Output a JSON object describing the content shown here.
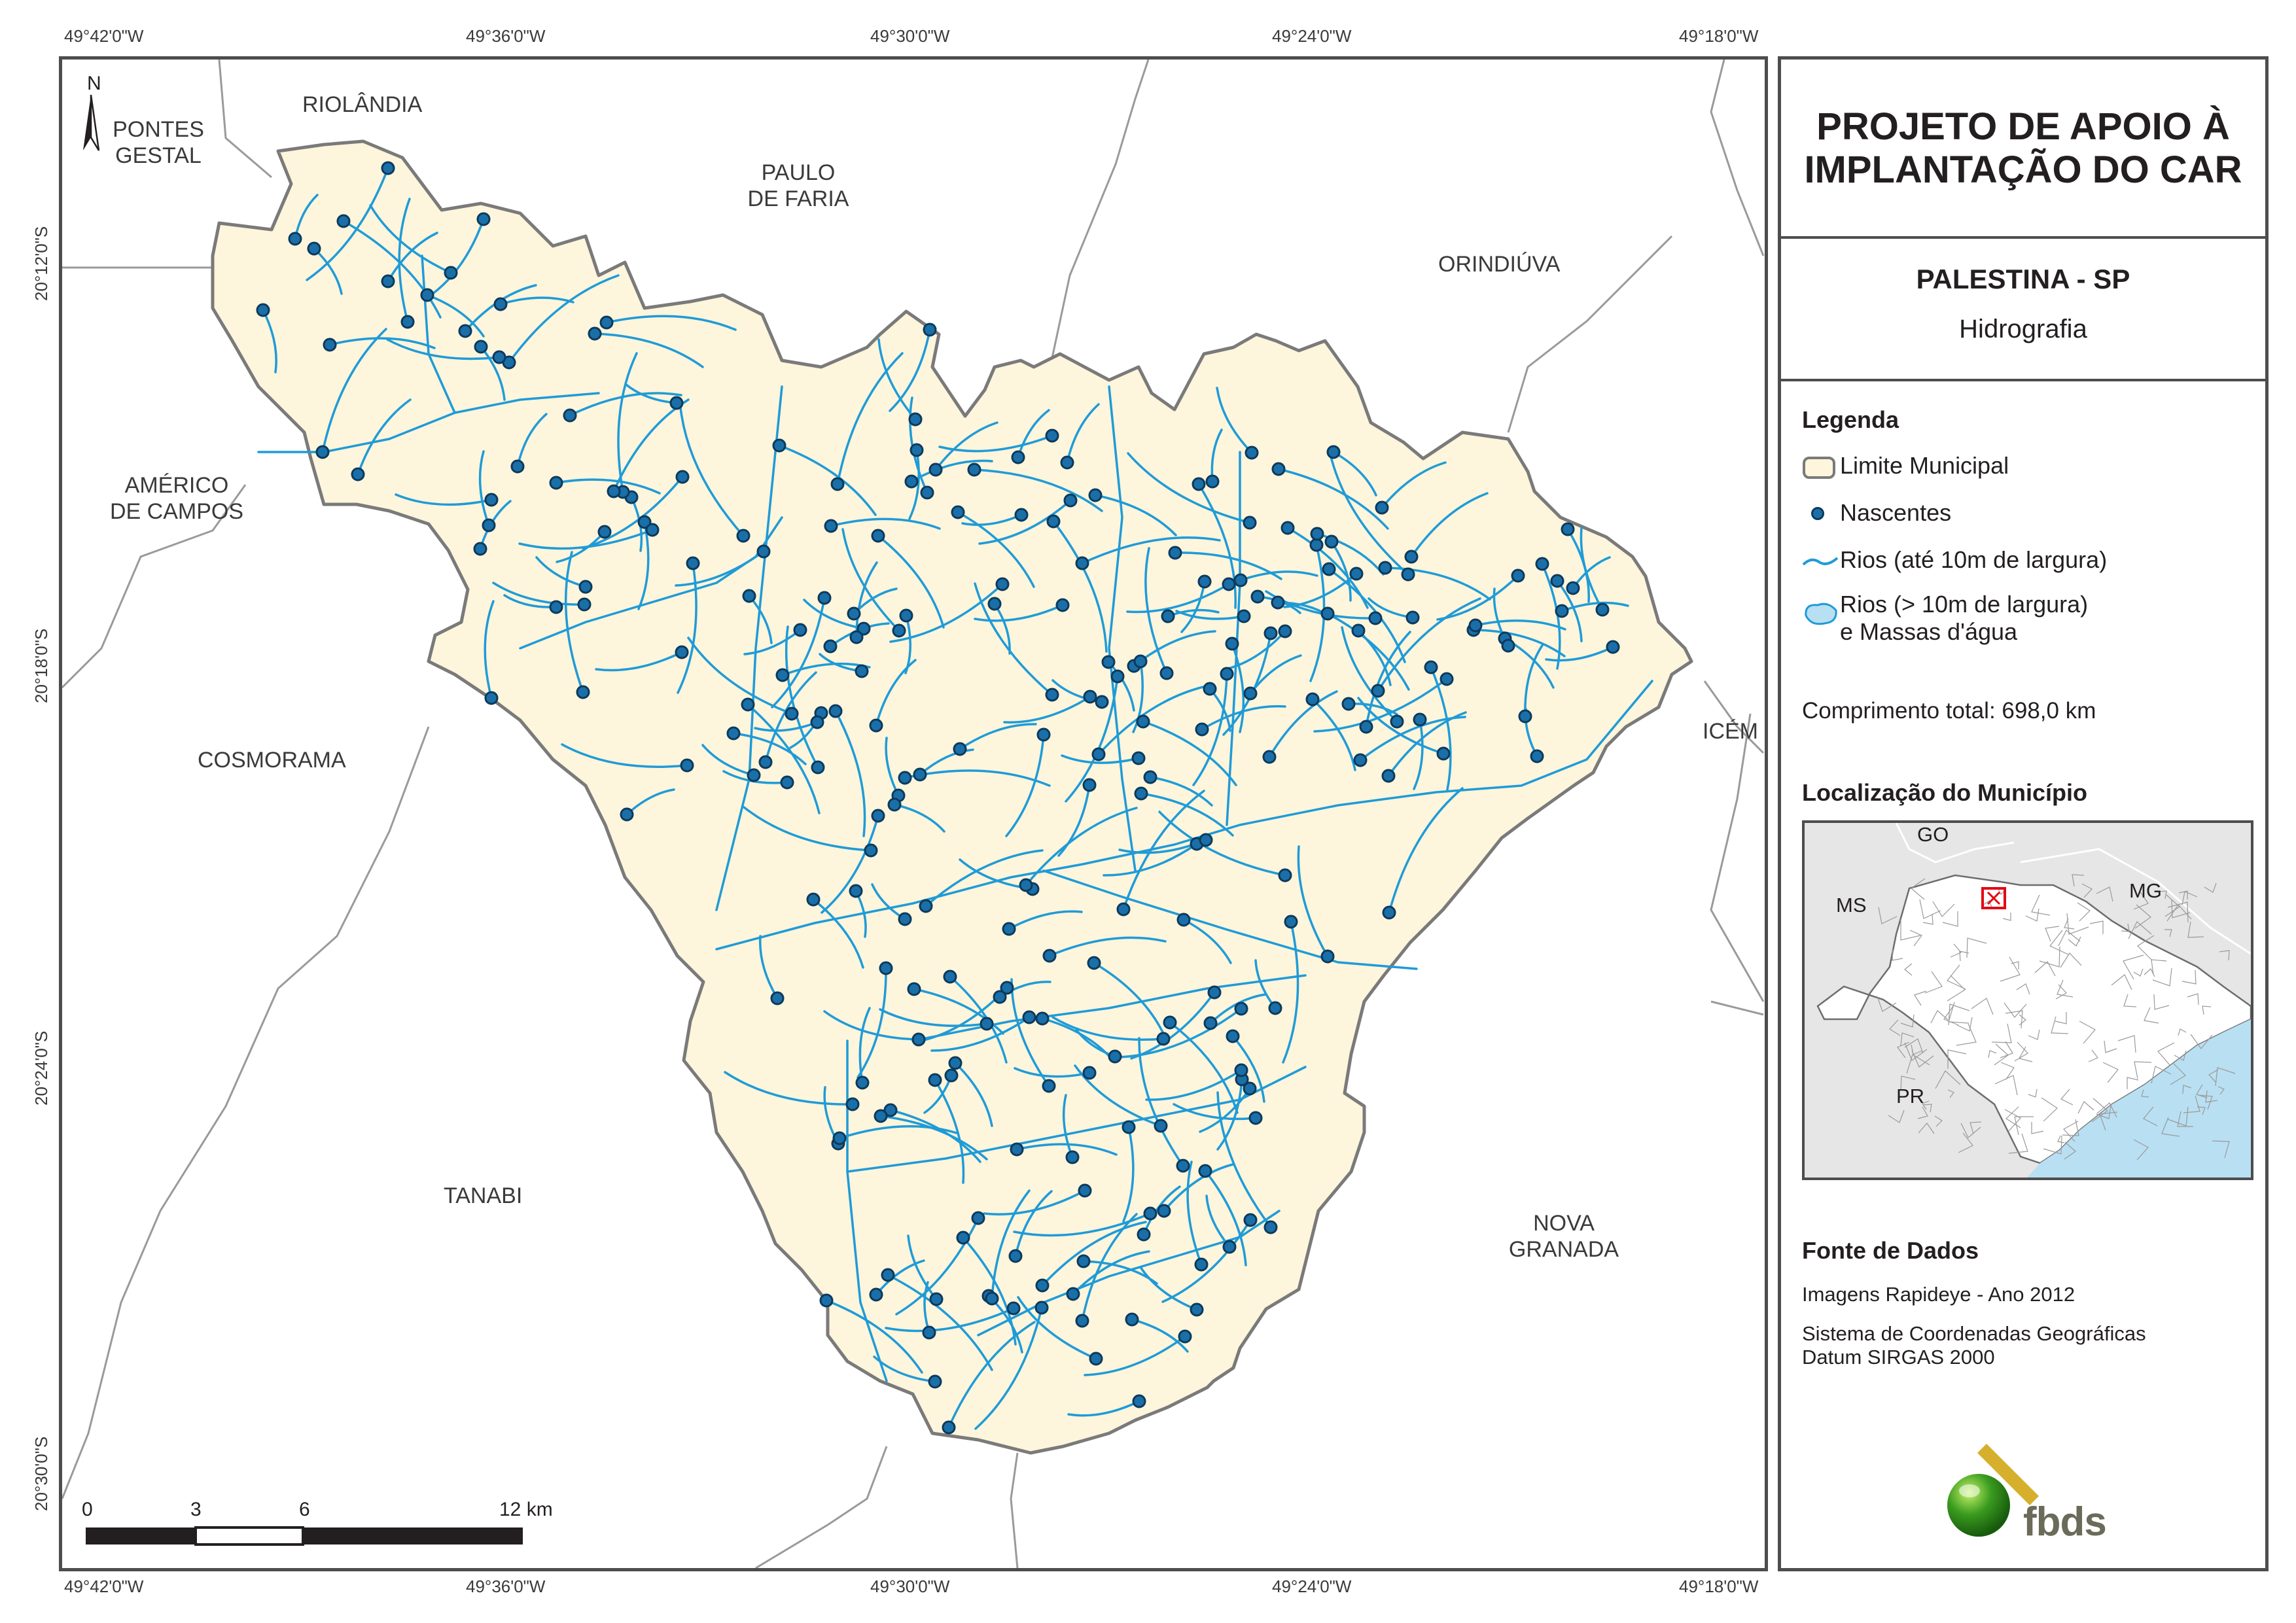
{
  "coordinates": {
    "top": [
      "49°42'0\"W",
      "49°36'0\"W",
      "49°30'0\"W",
      "49°24'0\"W",
      "49°18'0\"W"
    ],
    "bottom": [
      "49°42'0\"W",
      "49°36'0\"W",
      "49°30'0\"W",
      "49°24'0\"W",
      "49°18'0\"W"
    ],
    "left": [
      "20°12'0\"S",
      "20°18'0\"S",
      "20°24'0\"S",
      "20°30'0\"S"
    ]
  },
  "places": {
    "riolandia": "RIOLÂNDIA",
    "pontes_gestal": [
      "PONTES",
      "GESTAL"
    ],
    "paulo_de_faria": [
      "PAULO",
      "DE FARIA"
    ],
    "orindiuva": "ORINDIÚVA",
    "americo_de_campos": [
      "AMÉRICO",
      "DE CAMPOS"
    ],
    "cosmorama": "COSMORAMA",
    "icem": "ICÉM",
    "tanabi": "TANABI",
    "nova_granada": [
      "NOVA",
      "GRANADA"
    ]
  },
  "north_arrow": "N",
  "scale": {
    "labels": [
      "0",
      "3",
      "6",
      "12 km"
    ]
  },
  "panel": {
    "title": [
      "PROJETO DE APOIO À",
      "IMPLANTAÇÃO DO CAR"
    ],
    "municipality": "PALESTINA - SP",
    "theme": "Hidrografia",
    "legend_heading": "Legenda",
    "legend": {
      "limite": "Limite Municipal",
      "nascentes": "Nascentes",
      "rios_small": "Rios (até 10m de largura)",
      "rios_large": [
        "Rios (> 10m de largura)",
        "e Massas d'água"
      ]
    },
    "length": "Comprimento total:  698,0 km",
    "location_heading": "Localização do Município",
    "inset_labels": {
      "go": "GO",
      "ms": "MS",
      "mg": "MG",
      "pr": "PR"
    },
    "source_heading": "Fonte de Dados",
    "source": "Imagens Rapideye - Ano 2012",
    "crs": [
      "Sistema de Coordenadas Geográficas",
      "Datum SIRGAS 2000"
    ],
    "logo_text": "fbds"
  },
  "colors": {
    "municipality_fill": "#fdf5dc",
    "border": "#7a7a7a",
    "river": "#1f9bd7",
    "spring": "#1b6fa8",
    "water": "#b9dff2",
    "inset_land": "#e6e6e6",
    "highlight": "#e30613",
    "logo_green": "#3a9b1f",
    "logo_gold": "#d6b02c"
  },
  "icons": [
    "north-arrow-icon",
    "spring-point-icon",
    "river-line-icon",
    "water-body-icon",
    "fbds-logo-icon"
  ]
}
